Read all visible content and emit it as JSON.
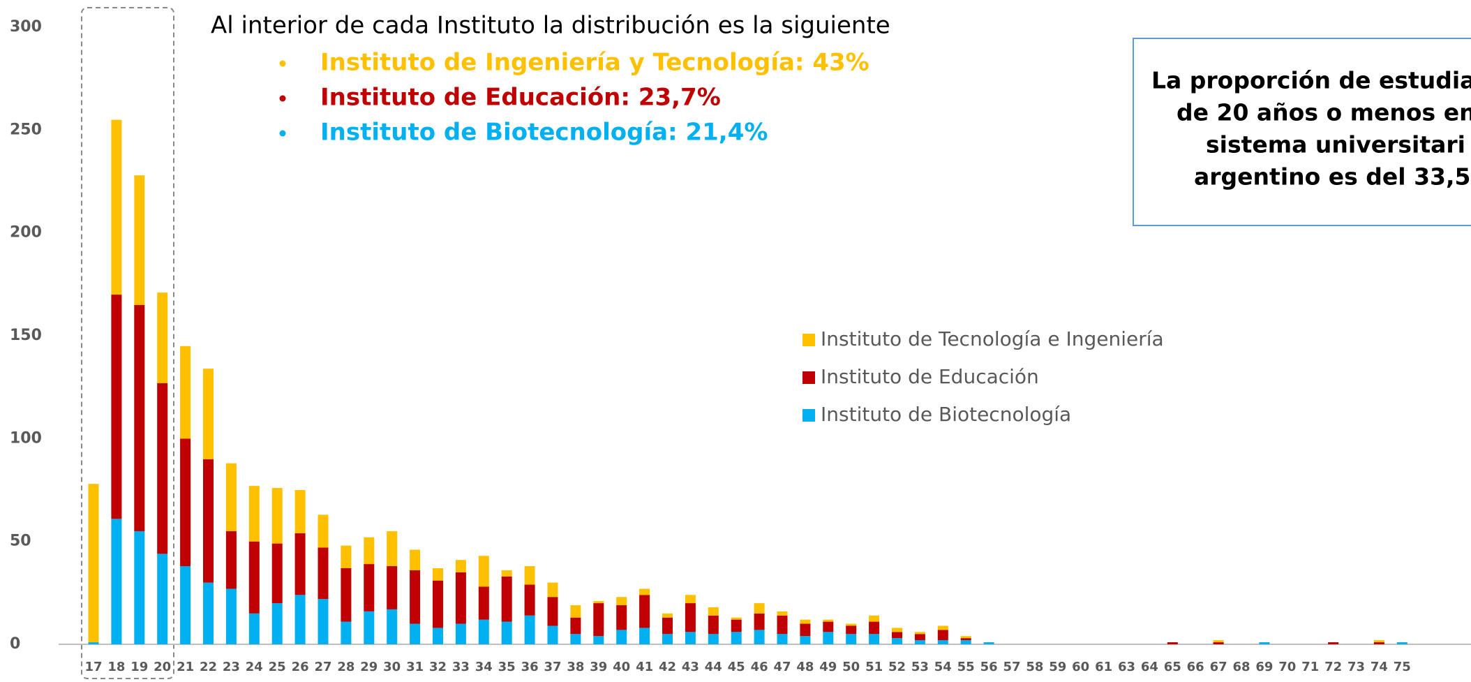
{
  "chart_data": {
    "type": "stacked_bar",
    "categories": [
      "17",
      "18",
      "19",
      "20",
      "21",
      "22",
      "23",
      "24",
      "25",
      "26",
      "27",
      "28",
      "29",
      "30",
      "31",
      "32",
      "33",
      "34",
      "35",
      "36",
      "37",
      "38",
      "39",
      "40",
      "41",
      "42",
      "43",
      "44",
      "45",
      "46",
      "47",
      "48",
      "49",
      "50",
      "51",
      "52",
      "53",
      "54",
      "55",
      "56",
      "57",
      "58",
      "59",
      "60",
      "61",
      "63",
      "64",
      "65",
      "66",
      "67",
      "68",
      "69",
      "70",
      "71",
      "72",
      "73",
      "74",
      "75"
    ],
    "series": [
      {
        "name": "Instituto de Biotecnología",
        "color": "#00B0F0",
        "values": [
          1,
          61,
          55,
          44,
          38,
          30,
          27,
          15,
          20,
          24,
          22,
          11,
          16,
          17,
          10,
          8,
          10,
          12,
          11,
          14,
          9,
          5,
          4,
          7,
          8,
          5,
          6,
          5,
          6,
          7,
          5,
          4,
          6,
          5,
          5,
          3,
          2,
          2,
          2,
          1,
          0,
          0,
          0,
          0,
          0,
          0,
          0,
          0,
          0,
          0,
          0,
          1,
          0,
          0,
          0,
          0,
          0,
          1
        ]
      },
      {
        "name": "Instituto de Educación",
        "color": "#C00000",
        "values": [
          0,
          109,
          110,
          83,
          62,
          60,
          28,
          35,
          29,
          30,
          25,
          26,
          23,
          21,
          26,
          23,
          25,
          16,
          22,
          15,
          14,
          8,
          16,
          12,
          16,
          8,
          14,
          9,
          6,
          8,
          9,
          6,
          5,
          4,
          6,
          3,
          3,
          5,
          1,
          0,
          0,
          0,
          0,
          0,
          0,
          0,
          0,
          1,
          0,
          1,
          0,
          0,
          0,
          0,
          1,
          0,
          1,
          0
        ]
      },
      {
        "name": "Instituto de Tecnología e Ingeniería",
        "color": "#FFC000",
        "values": [
          77,
          85,
          63,
          44,
          45,
          44,
          33,
          27,
          27,
          21,
          16,
          11,
          13,
          17,
          10,
          6,
          6,
          15,
          3,
          9,
          7,
          6,
          1,
          4,
          3,
          2,
          4,
          4,
          1,
          5,
          2,
          2,
          1,
          1,
          3,
          2,
          1,
          2,
          1,
          0,
          0,
          0,
          0,
          0,
          0,
          0,
          0,
          0,
          0,
          1,
          0,
          0,
          0,
          0,
          0,
          0,
          1,
          0
        ]
      }
    ],
    "ylim": [
      0,
      300
    ],
    "yticks": [
      0,
      50,
      100,
      150,
      200,
      250,
      300
    ],
    "annotations": {
      "heading": "Al interior de cada Instituto la distribución es la siguiente",
      "bullets": [
        {
          "text": "Instituto de Ingeniería y Tecnología: 43%",
          "color": "#FFC000"
        },
        {
          "text": "Instituto de Educación: 23,7%",
          "color": "#C00000"
        },
        {
          "text": "Instituto de Biotecnología: 21,4%",
          "color": "#00B0F0"
        }
      ],
      "note_lines": [
        "La proporción de estudia",
        "de 20 años o menos en",
        "sistema universitari",
        "argentino es del 33,5"
      ]
    }
  }
}
